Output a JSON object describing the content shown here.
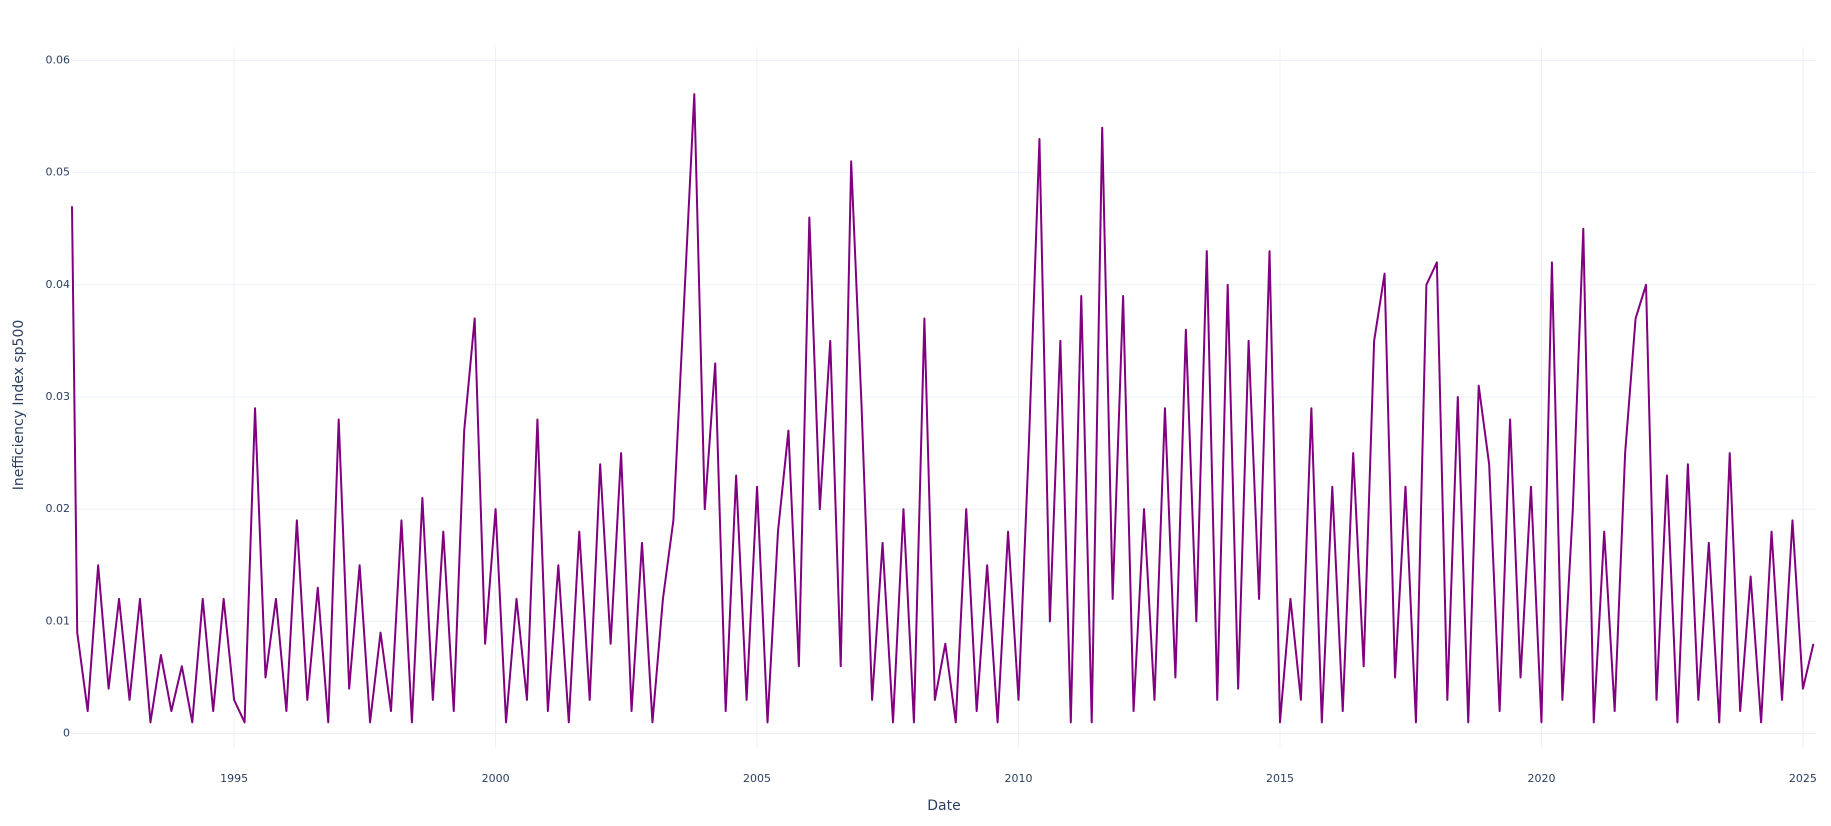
{
  "chart_data": {
    "type": "line",
    "x_label": "Date",
    "y_label": "Inefficiency Index sp500",
    "color": "#800080",
    "xlim": [
      1991.9,
      2025.25
    ],
    "xticks": [
      1995,
      2000,
      2005,
      2010,
      2015,
      2020,
      2025
    ],
    "ylim": [
      -0.0012,
      0.0612
    ],
    "yticks": [
      0,
      0.01,
      0.02,
      0.03,
      0.04,
      0.05,
      0.06
    ],
    "grid": true,
    "x": [
      1991.9,
      1992.0,
      1992.2,
      1992.4,
      1992.6,
      1992.8,
      1993.0,
      1993.2,
      1993.4,
      1993.6,
      1993.8,
      1994.0,
      1994.2,
      1994.4,
      1994.6,
      1994.8,
      1995.0,
      1995.2,
      1995.4,
      1995.6,
      1995.8,
      1996.0,
      1996.2,
      1996.4,
      1996.6,
      1996.8,
      1997.0,
      1997.2,
      1997.4,
      1997.6,
      1997.8,
      1998.0,
      1998.2,
      1998.4,
      1998.6,
      1998.8,
      1999.0,
      1999.2,
      1999.4,
      1999.6,
      1999.8,
      2000.0,
      2000.2,
      2000.4,
      2000.6,
      2000.8,
      2001.0,
      2001.2,
      2001.4,
      2001.6,
      2001.8,
      2002.0,
      2002.2,
      2002.4,
      2002.6,
      2002.8,
      2003.0,
      2003.2,
      2003.4,
      2003.6,
      2003.8,
      2004.0,
      2004.2,
      2004.4,
      2004.6,
      2004.8,
      2005.0,
      2005.2,
      2005.4,
      2005.6,
      2005.8,
      2006.0,
      2006.2,
      2006.4,
      2006.6,
      2006.8,
      2007.0,
      2007.2,
      2007.4,
      2007.6,
      2007.8,
      2008.0,
      2008.2,
      2008.4,
      2008.6,
      2008.8,
      2009.0,
      2009.2,
      2009.4,
      2009.6,
      2009.8,
      2010.0,
      2010.2,
      2010.4,
      2010.6,
      2010.8,
      2011.0,
      2011.2,
      2011.4,
      2011.6,
      2011.8,
      2012.0,
      2012.2,
      2012.4,
      2012.6,
      2012.8,
      2013.0,
      2013.2,
      2013.4,
      2013.6,
      2013.8,
      2014.0,
      2014.2,
      2014.4,
      2014.6,
      2014.8,
      2015.0,
      2015.2,
      2015.4,
      2015.6,
      2015.8,
      2016.0,
      2016.2,
      2016.4,
      2016.6,
      2016.8,
      2017.0,
      2017.2,
      2017.4,
      2017.6,
      2017.8,
      2018.0,
      2018.2,
      2018.4,
      2018.6,
      2018.8,
      2019.0,
      2019.2,
      2019.4,
      2019.6,
      2019.8,
      2020.0,
      2020.2,
      2020.4,
      2020.6,
      2020.8,
      2021.0,
      2021.2,
      2021.4,
      2021.6,
      2021.8,
      2022.0,
      2022.2,
      2022.4,
      2022.6,
      2022.8,
      2023.0,
      2023.2,
      2023.4,
      2023.6,
      2023.8,
      2024.0,
      2024.2,
      2024.4,
      2024.6,
      2024.8,
      2025.0,
      2025.2
    ],
    "values": [
      0.047,
      0.009,
      0.002,
      0.015,
      0.004,
      0.012,
      0.003,
      0.012,
      0.001,
      0.007,
      0.002,
      0.006,
      0.001,
      0.012,
      0.002,
      0.012,
      0.003,
      0.001,
      0.029,
      0.005,
      0.012,
      0.002,
      0.019,
      0.003,
      0.013,
      0.001,
      0.028,
      0.004,
      0.015,
      0.001,
      0.009,
      0.002,
      0.019,
      0.001,
      0.021,
      0.003,
      0.018,
      0.002,
      0.027,
      0.037,
      0.008,
      0.02,
      0.001,
      0.012,
      0.003,
      0.028,
      0.002,
      0.015,
      0.001,
      0.018,
      0.003,
      0.024,
      0.008,
      0.025,
      0.002,
      0.017,
      0.001,
      0.012,
      0.019,
      0.038,
      0.057,
      0.02,
      0.033,
      0.002,
      0.023,
      0.003,
      0.022,
      0.001,
      0.018,
      0.027,
      0.006,
      0.046,
      0.02,
      0.035,
      0.006,
      0.051,
      0.029,
      0.003,
      0.017,
      0.001,
      0.02,
      0.001,
      0.037,
      0.003,
      0.008,
      0.001,
      0.02,
      0.002,
      0.015,
      0.001,
      0.018,
      0.003,
      0.026,
      0.053,
      0.01,
      0.035,
      0.001,
      0.039,
      0.001,
      0.054,
      0.012,
      0.039,
      0.002,
      0.02,
      0.003,
      0.029,
      0.005,
      0.036,
      0.01,
      0.043,
      0.003,
      0.04,
      0.004,
      0.035,
      0.012,
      0.043,
      0.001,
      0.012,
      0.003,
      0.029,
      0.001,
      0.022,
      0.002,
      0.025,
      0.006,
      0.035,
      0.041,
      0.005,
      0.022,
      0.001,
      0.04,
      0.042,
      0.003,
      0.03,
      0.001,
      0.031,
      0.024,
      0.002,
      0.028,
      0.005,
      0.022,
      0.001,
      0.042,
      0.003,
      0.02,
      0.045,
      0.001,
      0.018,
      0.002,
      0.025,
      0.037,
      0.04,
      0.003,
      0.023,
      0.001,
      0.024,
      0.003,
      0.017,
      0.001,
      0.025,
      0.002,
      0.014,
      0.001,
      0.018,
      0.003,
      0.019,
      0.004,
      0.008
    ]
  }
}
